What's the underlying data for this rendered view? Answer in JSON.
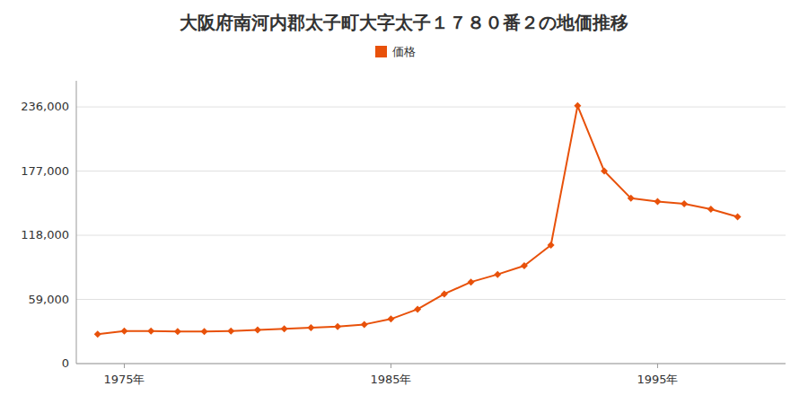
{
  "chart_data": {
    "type": "line",
    "title": "大阪府南河内郡太子町大字太子１７８０番２の地価推移",
    "x": [
      1974,
      1975,
      1976,
      1977,
      1978,
      1979,
      1980,
      1981,
      1982,
      1983,
      1984,
      1985,
      1986,
      1987,
      1988,
      1989,
      1990,
      1991,
      1992,
      1993,
      1994,
      1995,
      1996,
      1997,
      1998
    ],
    "series": [
      {
        "name": "価格",
        "color": "#e8510a",
        "marker": "diamond",
        "values": [
          27000,
          30000,
          30000,
          29500,
          29500,
          30000,
          31000,
          32000,
          33000,
          34000,
          36000,
          41000,
          50000,
          64000,
          75000,
          82000,
          90000,
          109000,
          237000,
          177000,
          152000,
          149000,
          147000,
          142000,
          135000
        ]
      }
    ],
    "xlim": [
      1973.2,
      1999.8
    ],
    "xticks": [
      {
        "value": 1975,
        "label": "1975年"
      },
      {
        "value": 1985,
        "label": "1985年"
      },
      {
        "value": 1995,
        "label": "1995年"
      }
    ],
    "ylim": [
      0,
      260000
    ],
    "yticks": [
      0,
      {
        "value": 59000,
        "label": "59,000"
      },
      {
        "value": 118000,
        "label": "118,000"
      },
      {
        "value": 177000,
        "label": "177,000"
      },
      {
        "value": 236000,
        "label": "236,000"
      }
    ],
    "grid": "y",
    "legend": "top"
  }
}
